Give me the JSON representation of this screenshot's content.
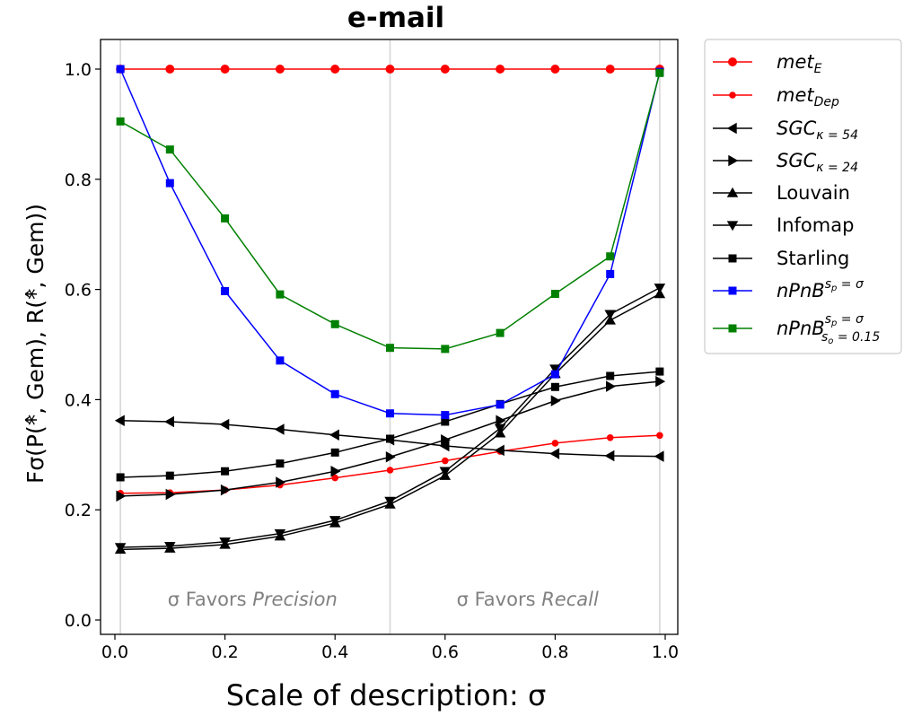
{
  "chart_data": {
    "type": "line",
    "title": "e-mail",
    "xlabel": "Scale of description: σ",
    "ylabel": "Fσ(P(*̂, Gem), R(*̂, Gem))",
    "xlim": [
      0.0,
      1.0
    ],
    "ylim": [
      0.0,
      1.0
    ],
    "x_ticks": [
      "0.0",
      "0.2",
      "0.4",
      "0.6",
      "0.8",
      "1.0"
    ],
    "y_ticks": [
      "0.0",
      "0.2",
      "0.4",
      "0.6",
      "0.8",
      "1.0"
    ],
    "grid": false,
    "legend_position": "outside-right",
    "vertical_guides": [
      0.01,
      0.5,
      0.99
    ],
    "region_labels": [
      {
        "prefix": "σ Favors ",
        "emph": "Precision",
        "x": 0.25
      },
      {
        "prefix": "σ Favors ",
        "emph": "Recall",
        "x": 0.75
      }
    ],
    "x": [
      0.01,
      0.1,
      0.2,
      0.3,
      0.4,
      0.5,
      0.6,
      0.7,
      0.8,
      0.9,
      0.99
    ],
    "series": [
      {
        "name": "metE",
        "color": "#ff0000",
        "marker": "circle",
        "marker_size": 5,
        "values": [
          1.0,
          1.0,
          1.0,
          1.0,
          1.0,
          1.0,
          1.0,
          1.0,
          1.0,
          1.0,
          1.0
        ]
      },
      {
        "name": "metDep",
        "color": "#ff0000",
        "marker": "circle",
        "marker_size": 3.8,
        "values": [
          0.23,
          0.231,
          0.236,
          0.245,
          0.258,
          0.272,
          0.289,
          0.306,
          0.321,
          0.331,
          0.335
        ]
      },
      {
        "name": "SGCκ=54",
        "color": "#000000",
        "marker": "triangle-left",
        "marker_size": 5,
        "values": [
          0.362,
          0.36,
          0.355,
          0.346,
          0.336,
          0.327,
          0.316,
          0.308,
          0.302,
          0.298,
          0.297
        ]
      },
      {
        "name": "SGCκ=24",
        "color": "#000000",
        "marker": "triangle-right",
        "marker_size": 5,
        "values": [
          0.225,
          0.228,
          0.236,
          0.25,
          0.27,
          0.296,
          0.327,
          0.362,
          0.398,
          0.424,
          0.433
        ]
      },
      {
        "name": "Louvain",
        "color": "#000000",
        "marker": "triangle-up",
        "marker_size": 5,
        "values": [
          0.128,
          0.13,
          0.137,
          0.152,
          0.176,
          0.21,
          0.262,
          0.339,
          0.447,
          0.544,
          0.592
        ]
      },
      {
        "name": "Infomap",
        "color": "#000000",
        "marker": "triangle-down",
        "marker_size": 5,
        "values": [
          0.132,
          0.134,
          0.142,
          0.157,
          0.181,
          0.216,
          0.27,
          0.348,
          0.456,
          0.555,
          0.603
        ]
      },
      {
        "name": "Starling",
        "color": "#000000",
        "marker": "square",
        "marker_size": 4.5,
        "values": [
          0.259,
          0.262,
          0.27,
          0.284,
          0.304,
          0.329,
          0.36,
          0.392,
          0.423,
          0.443,
          0.451
        ]
      },
      {
        "name": "nPnBsp=σ",
        "color": "#0000ff",
        "marker": "square",
        "marker_size": 4.5,
        "values": [
          1.0,
          0.793,
          0.597,
          0.471,
          0.41,
          0.375,
          0.372,
          0.391,
          0.446,
          0.628,
          0.995
        ]
      },
      {
        "name": "nPnBsp=σ so=0.15",
        "color": "#008000",
        "marker": "square",
        "marker_size": 4.5,
        "values": [
          0.905,
          0.854,
          0.729,
          0.591,
          0.537,
          0.494,
          0.492,
          0.521,
          0.592,
          0.66,
          0.993
        ]
      }
    ]
  }
}
